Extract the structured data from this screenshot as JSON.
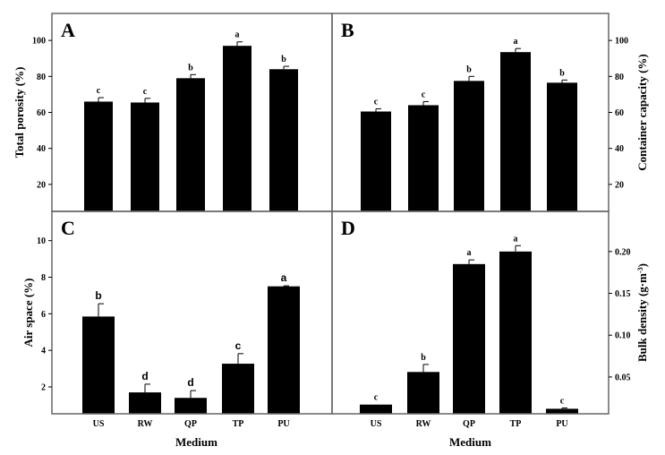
{
  "chart_data": [
    {
      "panel": "A",
      "type": "bar",
      "categories": [
        "US",
        "RW",
        "QP",
        "TP",
        "PU"
      ],
      "values": [
        66,
        65.5,
        79,
        97,
        84
      ],
      "errors": [
        2.2,
        2.3,
        2,
        2.2,
        1.6
      ],
      "letters": [
        "c",
        "c",
        "b",
        "a",
        "b"
      ],
      "ylabel": "Total porosity (%)",
      "xlabel": "",
      "ylim": [
        5,
        115
      ],
      "yticks": [
        20,
        40,
        60,
        80,
        100
      ],
      "tick_labels": [
        "20",
        "40",
        "60",
        "80",
        "100"
      ],
      "axis_side": "left",
      "show_x_labels": false
    },
    {
      "panel": "B",
      "type": "bar",
      "categories": [
        "US",
        "RW",
        "QP",
        "TP",
        "PU"
      ],
      "values": [
        60.5,
        64,
        77.5,
        93.5,
        76.5
      ],
      "errors": [
        1.5,
        2,
        2.5,
        2,
        1.5
      ],
      "letters": [
        "c",
        "c",
        "b",
        "a",
        "b"
      ],
      "ylabel": "Container capacity (%)",
      "xlabel": "",
      "ylim": [
        5,
        115
      ],
      "yticks": [
        20,
        40,
        60,
        80,
        100
      ],
      "tick_labels": [
        "20",
        "40",
        "60",
        "80",
        "100"
      ],
      "axis_side": "right",
      "show_x_labels": false
    },
    {
      "panel": "C",
      "type": "bar",
      "categories": [
        "US",
        "RW",
        "QP",
        "TP",
        "PU"
      ],
      "values": [
        5.85,
        1.7,
        1.4,
        3.27,
        7.5
      ],
      "errors": [
        0.7,
        0.45,
        0.4,
        0.55,
        0.03
      ],
      "letters": [
        "b",
        "d",
        "d",
        "c",
        "a"
      ],
      "ylabel": "Air space (%)",
      "xlabel": "Medium",
      "ylim": [
        0.53,
        11.6
      ],
      "yticks": [
        2,
        4,
        6,
        8,
        10
      ],
      "tick_labels": [
        "2",
        "4",
        "6",
        "8",
        "10"
      ],
      "axis_side": "left",
      "show_x_labels": true
    },
    {
      "panel": "D",
      "type": "bar",
      "categories": [
        "US",
        "RW",
        "QP",
        "TP",
        "PU"
      ],
      "values": [
        0.017,
        0.056,
        0.185,
        0.2,
        0.012
      ],
      "errors": [
        0,
        0.009,
        0.005,
        0.007,
        0.001
      ],
      "letters": [
        "c",
        "b",
        "a",
        "a",
        "c"
      ],
      "ylabel": "Bulk density (g·m",
      "ylabel_sup": "-3",
      "ylabel_end": ")",
      "xlabel": "Medium",
      "ylim": [
        0.006,
        0.248
      ],
      "yticks": [
        0.05,
        0.1,
        0.15,
        0.2
      ],
      "tick_labels": [
        "0.05",
        "0.10",
        "0.15",
        "0.20"
      ],
      "axis_side": "right",
      "show_x_labels": true
    }
  ],
  "colors": {
    "bar": "#000000",
    "frame": "#666666"
  }
}
